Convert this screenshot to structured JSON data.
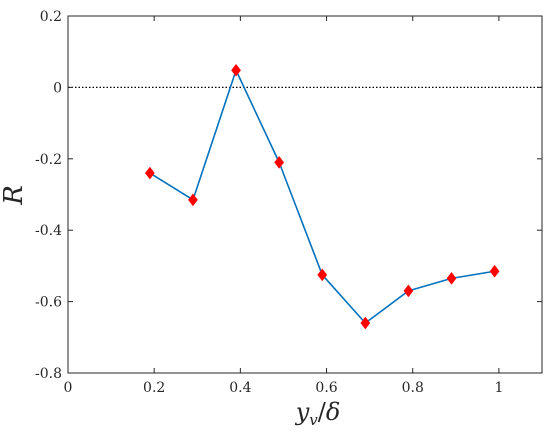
{
  "chart_data": {
    "type": "line",
    "xlabel": "y_v/δ",
    "ylabel": "R",
    "xlim": [
      0,
      1.1
    ],
    "ylim": [
      -0.8,
      0.2
    ],
    "xticks": [
      0,
      0.2,
      0.4,
      0.6,
      0.8,
      1
    ],
    "xtick_labels": [
      "0",
      "0.2",
      "0.4",
      "0.6",
      "0.8",
      "1"
    ],
    "yticks": [
      0.2,
      0,
      -0.2,
      -0.4,
      -0.6,
      -0.8
    ],
    "ytick_labels": [
      "0.2",
      "0",
      "-0.2",
      "-0.4",
      "-0.6",
      "-0.8"
    ],
    "reference_line": {
      "y": 0,
      "style": "dotted",
      "color": "#000000"
    },
    "grid": false,
    "series": [
      {
        "line_color": "#0072BD",
        "marker": "diamond",
        "marker_color": "#FF0000",
        "x": [
          0.19,
          0.29,
          0.39,
          0.49,
          0.59,
          0.69,
          0.79,
          0.89,
          0.99
        ],
        "y": [
          -0.24,
          -0.315,
          0.048,
          -0.21,
          -0.525,
          -0.66,
          -0.57,
          -0.535,
          -0.515
        ]
      }
    ]
  }
}
